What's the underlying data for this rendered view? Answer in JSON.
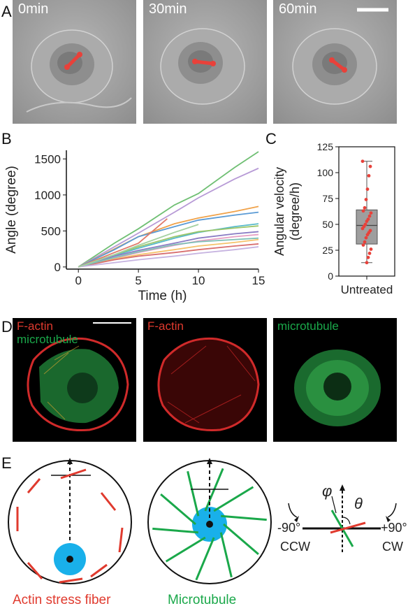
{
  "panels": {
    "a": {
      "label": "A",
      "timepoints": [
        "0min",
        "30min",
        "60min"
      ]
    },
    "b": {
      "label": "B"
    },
    "c": {
      "label": "C"
    },
    "d": {
      "label": "D",
      "tiles": [
        {
          "line1": "F-actin",
          "line2": "microtubule"
        },
        {
          "line1": "F-actin",
          "line2": ""
        },
        {
          "line1": "microtubule",
          "line2": ""
        }
      ]
    },
    "e": {
      "label": "E",
      "captions": [
        "Actin stress fiber",
        "Microtubule"
      ],
      "legend": {
        "phi": "φ",
        "theta": "θ",
        "minus": "-90°",
        "plus": "+90°",
        "ccw": "CCW",
        "cw": "CW"
      }
    }
  },
  "colors": {
    "actin": "#e03a2e",
    "microtubule": "#1aa84a",
    "nucleus": "#19b0ea",
    "box": "#9e9e9e",
    "point": "#e8413a"
  },
  "chart_data": [
    {
      "type": "line",
      "xlabel": "Time (h)",
      "ylabel": "Angle (degree)",
      "xlim": [
        -1,
        15
      ],
      "ylim": [
        -30,
        1620
      ],
      "xticks": [
        0,
        5,
        10,
        15
      ],
      "yticks": [
        0,
        500,
        1000,
        1500
      ],
      "grid": false,
      "series": [
        {
          "color": "#6fbf73",
          "values": [
            [
              0,
              0
            ],
            [
              3,
              330
            ],
            [
              5,
              530
            ],
            [
              8,
              860
            ],
            [
              10,
              1020
            ],
            [
              13,
              1380
            ],
            [
              15,
              1600
            ]
          ]
        },
        {
          "color": "#b79ad6",
          "values": [
            [
              0,
              0
            ],
            [
              3,
              280
            ],
            [
              5,
              470
            ],
            [
              8,
              760
            ],
            [
              10,
              960
            ],
            [
              13,
              1220
            ],
            [
              15,
              1370
            ]
          ]
        },
        {
          "color": "#f0a24a",
          "values": [
            [
              0,
              0
            ],
            [
              3,
              250
            ],
            [
              5,
              420
            ],
            [
              8,
              600
            ],
            [
              10,
              680
            ],
            [
              13,
              770
            ],
            [
              15,
              840
            ]
          ]
        },
        {
          "color": "#5b9bd5",
          "values": [
            [
              0,
              0
            ],
            [
              3,
              240
            ],
            [
              5,
              420
            ],
            [
              8,
              560
            ],
            [
              10,
              650
            ],
            [
              13,
              720
            ],
            [
              15,
              760
            ]
          ]
        },
        {
          "color": "#e07a6a",
          "values": [
            [
              0,
              0
            ],
            [
              3,
              200
            ],
            [
              5,
              330
            ],
            [
              7.4,
              670
            ]
          ]
        },
        {
          "color": "#57b9c9",
          "values": [
            [
              0,
              0
            ],
            [
              3,
              160
            ],
            [
              5,
              260
            ],
            [
              8,
              400
            ],
            [
              10,
              480
            ],
            [
              13,
              560
            ],
            [
              15,
              600
            ]
          ]
        },
        {
          "color": "#9cc66a",
          "values": [
            [
              0,
              0
            ],
            [
              3,
              170
            ],
            [
              5,
              280
            ],
            [
              8,
              420
            ],
            [
              10,
              490
            ],
            [
              13,
              540
            ],
            [
              15,
              570
            ]
          ]
        },
        {
          "color": "#8a7cc4",
          "values": [
            [
              0,
              0
            ],
            [
              3,
              150
            ],
            [
              5,
              230
            ],
            [
              8,
              330
            ],
            [
              10,
              400
            ],
            [
              13,
              460
            ],
            [
              15,
              490
            ]
          ]
        },
        {
          "color": "#e6a0c4",
          "values": [
            [
              0,
              0
            ],
            [
              3,
              120
            ],
            [
              5,
              200
            ],
            [
              8,
              300
            ],
            [
              10,
              360
            ],
            [
              13,
              420
            ],
            [
              15,
              450
            ]
          ]
        },
        {
          "color": "#f5c26b",
          "values": [
            [
              0,
              0
            ],
            [
              3,
              110
            ],
            [
              5,
              170
            ],
            [
              8,
              240
            ],
            [
              10,
              290
            ],
            [
              13,
              340
            ],
            [
              15,
              380
            ]
          ]
        },
        {
          "color": "#d86f6f",
          "values": [
            [
              0,
              0
            ],
            [
              3,
              100
            ],
            [
              5,
              150
            ],
            [
              8,
              200
            ],
            [
              10,
              240
            ],
            [
              13,
              290
            ],
            [
              15,
              320
            ]
          ]
        },
        {
          "color": "#7fc0b5",
          "values": [
            [
              0,
              0
            ],
            [
              3,
              130
            ],
            [
              5,
              210
            ],
            [
              8,
              310
            ],
            [
              10,
              350
            ],
            [
              13,
              380
            ],
            [
              15,
              400
            ]
          ]
        },
        {
          "color": "#c6b3e0",
          "values": [
            [
              0,
              0
            ],
            [
              3,
              60
            ],
            [
              5,
              100
            ],
            [
              8,
              150
            ],
            [
              10,
              190
            ],
            [
              13,
              240
            ],
            [
              15,
              280
            ]
          ]
        },
        {
          "color": "#a3d0a0",
          "values": [
            [
              0,
              0
            ],
            [
              3,
              170
            ],
            [
              5,
              300
            ],
            [
              8,
              480
            ],
            [
              10,
              590
            ]
          ]
        }
      ]
    },
    {
      "type": "box",
      "ylabel": "Angular velocity (degree/h)",
      "categories": [
        "Untreated"
      ],
      "ylim": [
        0,
        125
      ],
      "yticks": [
        0,
        25,
        50,
        75,
        100,
        125
      ],
      "box": {
        "min": 13,
        "q1": 31,
        "median": 49,
        "q3": 64,
        "max": 111
      },
      "points": [
        111,
        106,
        97,
        84,
        74,
        66,
        63,
        61,
        58,
        55,
        53,
        50,
        48,
        46,
        44,
        42,
        40,
        37,
        33,
        30,
        26,
        22,
        18,
        13
      ]
    }
  ]
}
